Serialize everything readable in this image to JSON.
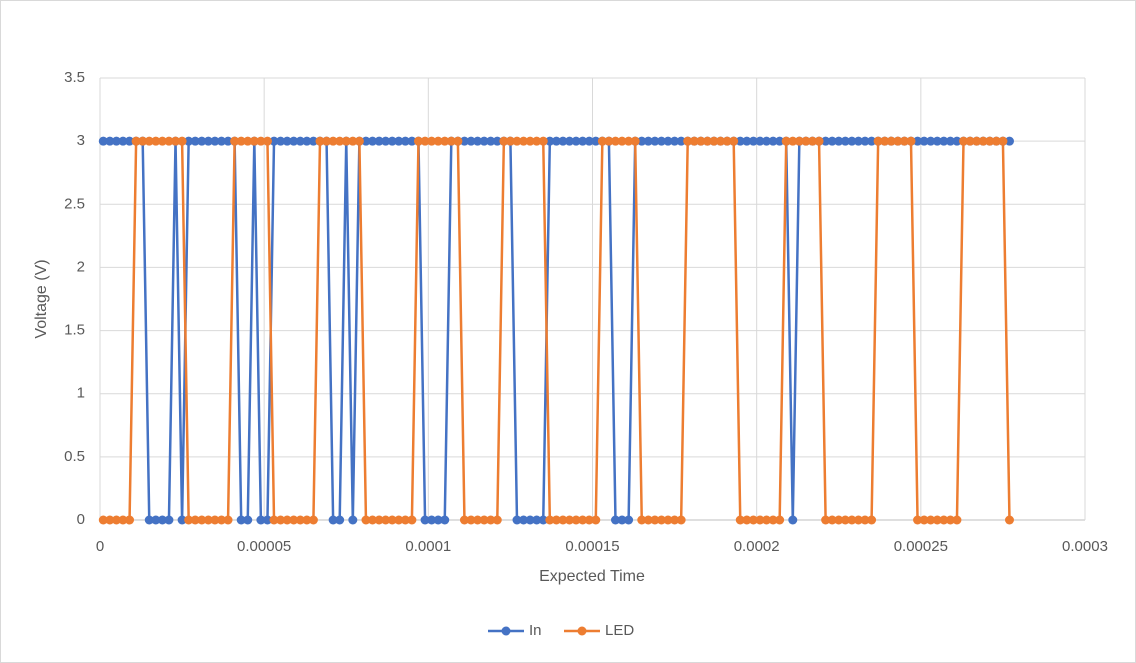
{
  "chart_data": {
    "type": "scatter-line",
    "x_label": "Expected Time",
    "y_label": "Voltage (V)",
    "xlim": [
      0,
      0.0003
    ],
    "xticks": [
      0,
      5e-05,
      0.0001,
      0.00015,
      0.0002,
      0.00025,
      0.0003
    ],
    "ylim": [
      0,
      3.5
    ],
    "yticks": [
      0,
      0.5,
      1,
      1.5,
      2,
      2.5,
      3,
      3.5
    ],
    "grid": true,
    "legend": "bottom",
    "x": [
      1e-06,
      3e-06,
      5e-06,
      7e-06,
      9e-06,
      1.1e-05,
      1.3e-05,
      1.5e-05,
      1.7e-05,
      1.9e-05,
      2.1e-05,
      2.3e-05,
      2.5e-05,
      2.7e-05,
      2.9e-05,
      3.1e-05,
      3.3e-05,
      3.5e-05,
      3.7e-05,
      3.9e-05,
      4.1e-05,
      4.3e-05,
      4.5e-05,
      4.7e-05,
      4.9e-05,
      5.1e-05,
      5.3e-05,
      5.5e-05,
      5.7e-05,
      5.9e-05,
      6.1e-05,
      6.3e-05,
      6.5e-05,
      6.7e-05,
      6.9e-05,
      7.1e-05,
      7.3e-05,
      7.5e-05,
      7.7e-05,
      7.9e-05,
      8.1e-05,
      8.3e-05,
      8.5e-05,
      8.7e-05,
      8.9e-05,
      9.1e-05,
      9.3e-05,
      9.5e-05,
      9.7e-05,
      9.9e-05,
      0.000101,
      0.000103,
      0.000105,
      0.000107,
      0.000109,
      0.000111,
      0.000113,
      0.000115,
      0.000117,
      0.000119,
      0.000121,
      0.000123,
      0.000125,
      0.000127,
      0.000129,
      0.000131,
      0.000133,
      0.000135,
      0.000137,
      0.000139,
      0.000141,
      0.000143,
      0.000145,
      0.000147,
      0.000149,
      0.000151,
      0.000153,
      0.000155,
      0.000157,
      0.000159,
      0.000161,
      0.000163,
      0.000165,
      0.000167,
      0.000169,
      0.000171,
      0.000173,
      0.000175,
      0.000177,
      0.000179,
      0.000181,
      0.000183,
      0.000185,
      0.000187,
      0.000189,
      0.000191,
      0.000193,
      0.000195,
      0.000197,
      0.000199,
      0.000201,
      0.000203,
      0.000205,
      0.000207,
      0.000209,
      0.000211,
      0.000213,
      0.000215,
      0.000217,
      0.000219,
      0.000221,
      0.000223,
      0.000225,
      0.000227,
      0.000229,
      0.000231,
      0.000233,
      0.000235,
      0.000237,
      0.000239,
      0.000241,
      0.000243,
      0.000245,
      0.000247,
      0.000249,
      0.000251,
      0.000253,
      0.000255,
      0.000257,
      0.000259,
      0.000261,
      0.000263,
      0.000265,
      0.000267,
      0.000269,
      0.000271,
      0.000273,
      0.000275,
      0.000277
    ],
    "series": [
      {
        "name": "In",
        "color": "#4472c4",
        "values": [
          3,
          3,
          3,
          3,
          3,
          3,
          3,
          0,
          0,
          0,
          0,
          3,
          0,
          3,
          3,
          3,
          3,
          3,
          3,
          3,
          3,
          0,
          0,
          3,
          0,
          0,
          3,
          3,
          3,
          3,
          3,
          3,
          3,
          3,
          3,
          0,
          0,
          3,
          0,
          3,
          3,
          3,
          3,
          3,
          3,
          3,
          3,
          3,
          3,
          0,
          0,
          0,
          0,
          3,
          3,
          3,
          3,
          3,
          3,
          3,
          3,
          3,
          3,
          0,
          0,
          0,
          0,
          0,
          3,
          3,
          3,
          3,
          3,
          3,
          3,
          3,
          3,
          3,
          0,
          0,
          0,
          3,
          3,
          3,
          3,
          3,
          3,
          3,
          3,
          3,
          3,
          3,
          3,
          3,
          3,
          3,
          3,
          3,
          3,
          3,
          3,
          3,
          3,
          3,
          3,
          0,
          3,
          3,
          3,
          3,
          3,
          3,
          3,
          3,
          3,
          3,
          3,
          3,
          3,
          3,
          3,
          3,
          3,
          3,
          3,
          3,
          3,
          3,
          3,
          3,
          3,
          3,
          3,
          3,
          3,
          3,
          3,
          3,
          3
        ]
      },
      {
        "name": "LED",
        "color": "#ed7d31",
        "values": [
          0,
          0,
          0,
          0,
          0,
          3,
          3,
          3,
          3,
          3,
          3,
          3,
          3,
          0,
          0,
          0,
          0,
          0,
          0,
          0,
          3,
          3,
          3,
          3,
          3,
          3,
          0,
          0,
          0,
          0,
          0,
          0,
          0,
          3,
          3,
          3,
          3,
          3,
          3,
          3,
          0,
          0,
          0,
          0,
          0,
          0,
          0,
          0,
          3,
          3,
          3,
          3,
          3,
          3,
          3,
          0,
          0,
          0,
          0,
          0,
          0,
          3,
          3,
          3,
          3,
          3,
          3,
          3,
          0,
          0,
          0,
          0,
          0,
          0,
          0,
          0,
          3,
          3,
          3,
          3,
          3,
          3,
          0,
          0,
          0,
          0,
          0,
          0,
          0,
          3,
          3,
          3,
          3,
          3,
          3,
          3,
          3,
          0,
          0,
          0,
          0,
          0,
          0,
          0,
          3,
          3,
          3,
          3,
          3,
          3,
          0,
          0,
          0,
          0,
          0,
          0,
          0,
          0,
          3,
          3,
          3,
          3,
          3,
          3,
          0,
          0,
          0,
          0,
          0,
          0,
          0,
          3,
          3,
          3,
          3,
          3,
          3,
          3,
          0
        ]
      }
    ]
  }
}
